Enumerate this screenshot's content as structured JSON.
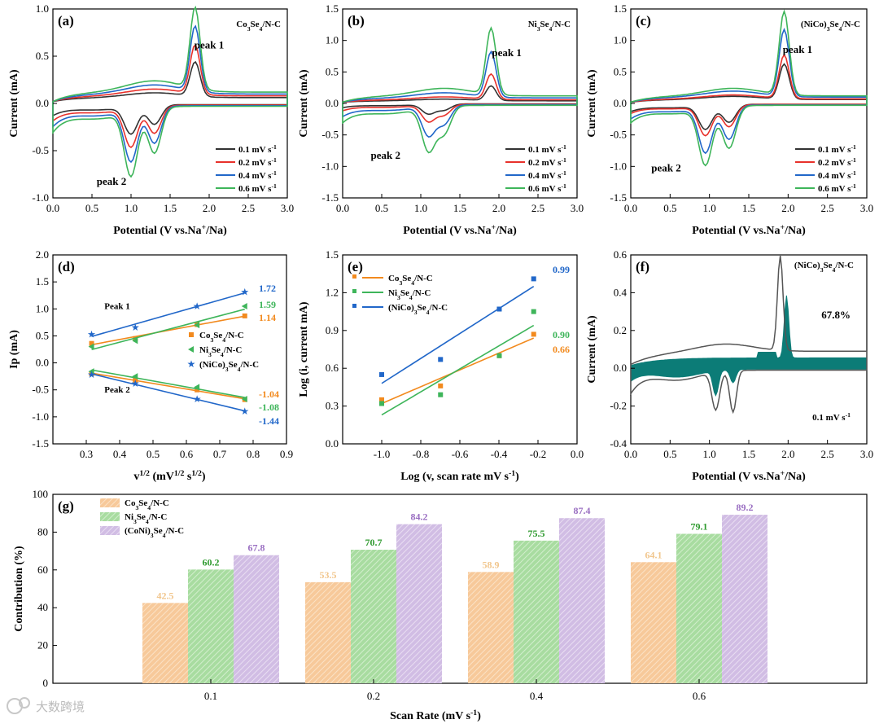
{
  "colors": {
    "black": "#333333",
    "red": "#e8312b",
    "blue": "#2167c9",
    "green": "#3eb55a",
    "orange": "#f28a1e",
    "teal": "#0c7c77",
    "gray": "#555555",
    "bar1": "#f7c99a",
    "bar2": "#a8dca0",
    "bar3": "#d1bde4",
    "bar1_text": "#f1c68d",
    "bar2_text": "#2e9a2e",
    "bar3_text": "#9a6fc2"
  },
  "watermark": {
    "icon": "chat-logo-icon",
    "text": "大数跨境"
  },
  "chart_data": [
    {
      "id": "a",
      "type": "line",
      "panel_label": "(a)",
      "material": "Co",
      "material_sub": "3",
      "material_mid": "Se",
      "material_sub2": "4",
      "material_end": "/N-C",
      "xlabel_main": "Potential ",
      "xlabel_paren": "(V vs.Na",
      "xlabel_sup": "+",
      "xlabel_end": "/Na)",
      "ylabel": "Current (mA)",
      "xlim": [
        0,
        3
      ],
      "ylim": [
        -1,
        1
      ],
      "xticks": [
        "0.0",
        "0.5",
        "1.0",
        "1.5",
        "2.0",
        "2.5",
        "3.0"
      ],
      "yticks": [
        "-1.0",
        "-0.5",
        "0.0",
        "0.5",
        "1.0"
      ],
      "annotations": [
        {
          "text": "peak 1",
          "x": 2.0,
          "y": 0.58
        },
        {
          "text": "peak 2",
          "x": 0.75,
          "y": -0.86
        }
      ],
      "series": [
        {
          "name": "0.1 mV s",
          "sup": "-1",
          "color_key": "black",
          "scale": 0.42
        },
        {
          "name": "0.2 mV s",
          "sup": "-1",
          "color_key": "red",
          "scale": 0.6
        },
        {
          "name": "0.4 mV s",
          "sup": "-1",
          "color_key": "blue",
          "scale": 0.8
        },
        {
          "name": "0.6 mV s",
          "sup": "-1",
          "color_key": "green",
          "scale": 1.0
        }
      ],
      "ox_peak": [
        1.82,
        0.86
      ],
      "red_peaks": [
        [
          1.0,
          -0.68
        ],
        [
          1.3,
          -0.48
        ]
      ]
    },
    {
      "id": "b",
      "type": "line",
      "panel_label": "(b)",
      "material": "Ni",
      "material_sub": "3",
      "material_mid": "Se",
      "material_sub2": "4",
      "material_end": "/N-C",
      "xlabel_main": "Potential ",
      "xlabel_paren": "(V vs.Na",
      "xlabel_sup": "+",
      "xlabel_end": "/Na)",
      "ylabel": "Current (mA)",
      "xlim": [
        0,
        3
      ],
      "ylim": [
        -1.5,
        1.5
      ],
      "xticks": [
        "0.0",
        "0.5",
        "1.0",
        "1.5",
        "2.0",
        "2.5",
        "3.0"
      ],
      "yticks": [
        "-1.5",
        "-1.0",
        "-0.5",
        "0.0",
        "0.5",
        "1.0",
        "1.5"
      ],
      "annotations": [
        {
          "text": "peak 1",
          "x": 2.1,
          "y": 0.75
        },
        {
          "text": "peak 2",
          "x": 0.55,
          "y": -0.88
        }
      ],
      "series": [
        {
          "name": "0.1 mV s",
          "sup": "-1",
          "color_key": "black",
          "scale": 0.22
        },
        {
          "name": "0.2 mV s",
          "sup": "-1",
          "color_key": "red",
          "scale": 0.38
        },
        {
          "name": "0.4 mV s",
          "sup": "-1",
          "color_key": "blue",
          "scale": 0.68
        },
        {
          "name": "0.6 mV s",
          "sup": "-1",
          "color_key": "green",
          "scale": 1.0
        }
      ],
      "ox_peak": [
        1.9,
        1.05
      ],
      "red_peaks": [
        [
          1.1,
          -0.68
        ],
        [
          1.3,
          -0.42
        ]
      ]
    },
    {
      "id": "c",
      "type": "line",
      "panel_label": "(c)",
      "material": "(NiCo)",
      "material_sub": "3",
      "material_mid": "Se",
      "material_sub2": "4",
      "material_end": "/N-C",
      "xlabel_main": "Potential ",
      "xlabel_paren": "(V vs.Na",
      "xlabel_sup": "+",
      "xlabel_end": "/Na)",
      "ylabel": "Current (mA)",
      "xlim": [
        0,
        3
      ],
      "ylim": [
        -1.5,
        1.5
      ],
      "xticks": [
        "0.0",
        "0.5",
        "1.0",
        "1.5",
        "2.0",
        "2.5",
        "3.0"
      ],
      "yticks": [
        "-1.5",
        "-1.0",
        "-0.5",
        "0.0",
        "0.5",
        "1.0",
        "1.5"
      ],
      "annotations": [
        {
          "text": "peak 1",
          "x": 2.12,
          "y": 0.8
        },
        {
          "text": "peak 2",
          "x": 0.45,
          "y": -1.08
        }
      ],
      "series": [
        {
          "name": "0.1 mV s",
          "sup": "-1",
          "color_key": "black",
          "scale": 0.42
        },
        {
          "name": "0.2 mV s",
          "sup": "-1",
          "color_key": "red",
          "scale": 0.52
        },
        {
          "name": "0.4 mV s",
          "sup": "-1",
          "color_key": "blue",
          "scale": 0.8
        },
        {
          "name": "0.6 mV s",
          "sup": "-1",
          "color_key": "green",
          "scale": 1.0
        }
      ],
      "ox_peak": [
        1.95,
        1.32
      ],
      "red_peaks": [
        [
          0.95,
          -0.88
        ],
        [
          1.25,
          -0.66
        ]
      ]
    },
    {
      "id": "d",
      "type": "scatter",
      "panel_label": "(d)",
      "xlabel_main": "v",
      "xlabel_sup": "1/2",
      "xlabel_paren": " (mV",
      "xlabel_sup2": "1/2",
      "xlabel_end": " s",
      "xlabel_sup3": "1/2",
      "xlabel_close": ")",
      "ylabel": "Ip (mA)",
      "xlim": [
        0.2,
        0.9
      ],
      "ylim": [
        -1.5,
        2.0
      ],
      "xticks": [
        "0.3",
        "0.4",
        "0.5",
        "0.6",
        "0.7",
        "0.8",
        "0.9"
      ],
      "yticks": [
        "-1.5",
        "-1.0",
        "-0.5",
        "0.0",
        "0.5",
        "1.0",
        "1.5",
        "2.0"
      ],
      "x": [
        0.316,
        0.447,
        0.632,
        0.775
      ],
      "annotations": [
        {
          "text": "Peak 1",
          "x": 0.33,
          "y": 1.0
        },
        {
          "text": "Peak 2",
          "x": 0.33,
          "y": -0.55
        }
      ],
      "series": [
        {
          "name": "Co",
          "sub": "3",
          "mid": "Se",
          "sub2": "4",
          "end": "/N-C",
          "color_key": "orange",
          "marker": "square",
          "peak1": [
            0.36,
            0.45,
            0.71,
            0.87
          ],
          "peak2": [
            -0.2,
            -0.32,
            -0.5,
            -0.68
          ],
          "slope1": "1.14",
          "slope2": "-1.04"
        },
        {
          "name": "Ni",
          "sub": "3",
          "mid": "Se",
          "sub2": "4",
          "end": "/N-C",
          "color_key": "green",
          "marker": "triangle",
          "peak1": [
            0.3,
            0.41,
            0.7,
            1.05
          ],
          "peak2": [
            -0.16,
            -0.25,
            -0.45,
            -0.67
          ],
          "slope1": "1.59",
          "slope2": "-1.08"
        },
        {
          "name": "(NiCo)",
          "sub": "3",
          "mid": "Se",
          "sub2": "4",
          "end": "/N-C",
          "color_key": "blue",
          "marker": "star",
          "peak1": [
            0.53,
            0.66,
            1.05,
            1.31
          ],
          "peak2": [
            -0.22,
            -0.38,
            -0.67,
            -0.9
          ],
          "slope1": "1.72",
          "slope2": "-1.44"
        }
      ]
    },
    {
      "id": "e",
      "type": "scatter",
      "panel_label": "(e)",
      "xlabel_main": "Log (v, scan rate mV s",
      "xlabel_sup": "-1",
      "xlabel_end": ")",
      "ylabel": "Log (i, current mA)",
      "xlim": [
        -1.2,
        0.0
      ],
      "ylim": [
        0.0,
        1.5
      ],
      "xticks": [
        "-1.0",
        "-0.8",
        "-0.6",
        "-0.4",
        "-0.2",
        "0.0"
      ],
      "yticks": [
        "0.0",
        "0.3",
        "0.6",
        "0.9",
        "1.2",
        "1.5"
      ],
      "x": [
        -1.0,
        -0.699,
        -0.398,
        -0.222
      ],
      "series": [
        {
          "name": "Co",
          "sub": "3",
          "mid": "Se",
          "sub2": "4",
          "end": "/N-C",
          "color_key": "orange",
          "y": [
            0.35,
            0.46,
            0.7,
            0.87
          ],
          "fit": [
            0.32,
            0.84
          ],
          "slope": "0.66"
        },
        {
          "name": "Ni",
          "sub": "3",
          "mid": "Se",
          "sub2": "4",
          "end": "/N-C",
          "color_key": "green",
          "y": [
            0.32,
            0.39,
            0.7,
            1.05
          ],
          "fit": [
            0.23,
            0.94
          ],
          "slope": "0.90"
        },
        {
          "name": "(NiCo)",
          "sub": "3",
          "mid": "Se",
          "sub2": "4",
          "end": "/N-C",
          "color_key": "blue",
          "y": [
            0.55,
            0.67,
            1.07,
            1.31
          ],
          "fit": [
            0.48,
            1.25
          ],
          "slope": "0.99"
        }
      ]
    },
    {
      "id": "f",
      "type": "area",
      "panel_label": "(f)",
      "material": "(NiCo)",
      "material_sub": "3",
      "material_mid": "Se",
      "material_sub2": "4",
      "material_end": "/N-C",
      "percent": "67.8%",
      "rate": "0.1 mV s",
      "rate_sup": "-1",
      "xlabel_main": "Potential ",
      "xlabel_paren": "(V vs.Na",
      "xlabel_sup": "+",
      "xlabel_end": "/Na)",
      "ylabel": "Current (mA)",
      "xlim": [
        0,
        3
      ],
      "ylim": [
        -0.4,
        0.6
      ],
      "xticks": [
        "0.0",
        "0.5",
        "1.0",
        "1.5",
        "2.0",
        "2.5",
        "3.0"
      ],
      "yticks": [
        "-0.4",
        "-0.2",
        "0.0",
        "0.2",
        "0.4",
        "0.6"
      ],
      "ox_peak": [
        1.9,
        0.52
      ],
      "red_peaks": [
        [
          1.08,
          -0.22
        ],
        [
          1.3,
          -0.25
        ]
      ]
    },
    {
      "id": "g",
      "type": "bar",
      "panel_label": "(g)",
      "xlabel_main": "Scan Rate (mV s",
      "xlabel_sup": "-1",
      "xlabel_end": ")",
      "ylabel": "Contribution (%)",
      "categories": [
        "0.1",
        "0.2",
        "0.4",
        "0.6"
      ],
      "ylim": [
        0,
        100
      ],
      "yticks": [
        "0",
        "20",
        "40",
        "60",
        "80",
        "100"
      ],
      "series": [
        {
          "name": "Co",
          "sub": "3",
          "mid": "Se",
          "sub2": "4",
          "end": "/N-C",
          "color_key": "bar1",
          "text_key": "bar1_text",
          "values": [
            42.5,
            53.5,
            58.9,
            64.1
          ],
          "labels": [
            "42.5",
            "53.5",
            "58.9",
            "64.1"
          ]
        },
        {
          "name": "Ni",
          "sub": "3",
          "mid": "Se",
          "sub2": "4",
          "end": "/N-C",
          "color_key": "bar2",
          "text_key": "bar2_text",
          "values": [
            60.2,
            70.7,
            75.5,
            79.1
          ],
          "labels": [
            "60.2",
            "70.7",
            "75.5",
            "79.1"
          ]
        },
        {
          "name": "(CoNi)",
          "sub": "3",
          "mid": "Se",
          "sub2": "4",
          "end": "/N-C",
          "color_key": "bar3",
          "text_key": "bar3_text",
          "values": [
            67.8,
            84.2,
            87.4,
            89.2
          ],
          "labels": [
            "67.8",
            "84.2",
            "87.4",
            "89.2"
          ]
        }
      ]
    }
  ]
}
